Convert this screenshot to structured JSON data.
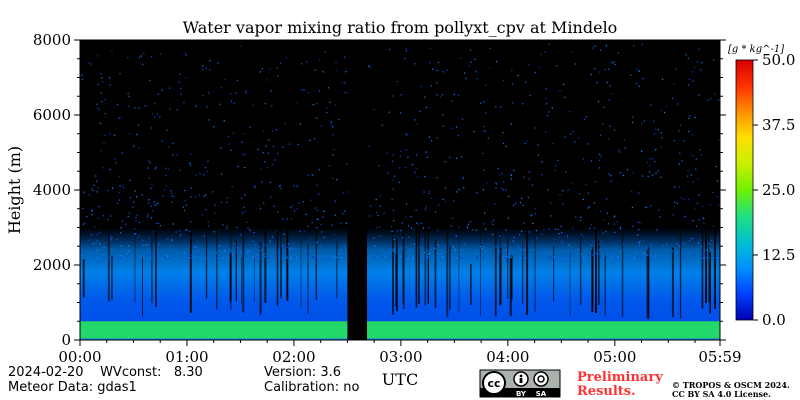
{
  "chart_data": {
    "type": "heatmap",
    "title": "Water vapor mixing ratio from pollyxt_cpv at Mindelo",
    "ylabel": "Height (m)",
    "xlabel": "UTC",
    "ylim": [
      0,
      8000
    ],
    "xlim": [
      0,
      359
    ],
    "y_ticks": [
      0,
      2000,
      4000,
      6000,
      8000
    ],
    "y_tick_labels": [
      "0",
      "2000",
      "4000",
      "6000",
      "8000"
    ],
    "x_ticks": [
      0,
      60,
      120,
      180,
      240,
      300,
      359
    ],
    "x_tick_labels": [
      "00:00",
      "01:00",
      "02:00",
      "03:00",
      "04:00",
      "05:00",
      "05:59"
    ],
    "colorbar": {
      "label": "[g * kg^-1]",
      "range": [
        0,
        50
      ],
      "ticks": [
        0,
        12.5,
        25,
        37.5,
        50
      ],
      "tick_labels": [
        "0.0",
        "12.5",
        "25.0",
        "37.5",
        "50.0"
      ],
      "colormap": [
        "#0000b0",
        "#0040ff",
        "#0090ff",
        "#00c0d0",
        "#20e080",
        "#70f000",
        "#c8f000",
        "#ffe000",
        "#ff9000",
        "#ff3000",
        "#d80000"
      ]
    },
    "data_gap_utc": [
      "02:30",
      "02:41"
    ],
    "layers": [
      {
        "height_range": [
          0,
          500
        ],
        "value": 23
      },
      {
        "height_range": [
          500,
          1500
        ],
        "value": 5
      },
      {
        "height_range": [
          1500,
          3000
        ],
        "value": 8
      },
      {
        "height_range": [
          3000,
          8000
        ],
        "value": 3
      }
    ]
  },
  "footer": {
    "date_line": "2024-02-20    WVconst:   8.30",
    "meteor_line": "Meteor Data: gdas1",
    "version_line": "Version: 3.6",
    "calibration_line": "Calibration: no",
    "preliminary_line1": "Preliminary",
    "preliminary_line2": "Results.",
    "copyright_line1": "© TROPOS & OSCM 2024.",
    "copyright_line2": "CC BY SA 4.0 License.",
    "license_badge_cc": "cc",
    "license_badge_by": "BY",
    "license_badge_sa": "SA"
  },
  "colors": {
    "preliminary": "#ff3333",
    "background_plot": "#000000"
  }
}
